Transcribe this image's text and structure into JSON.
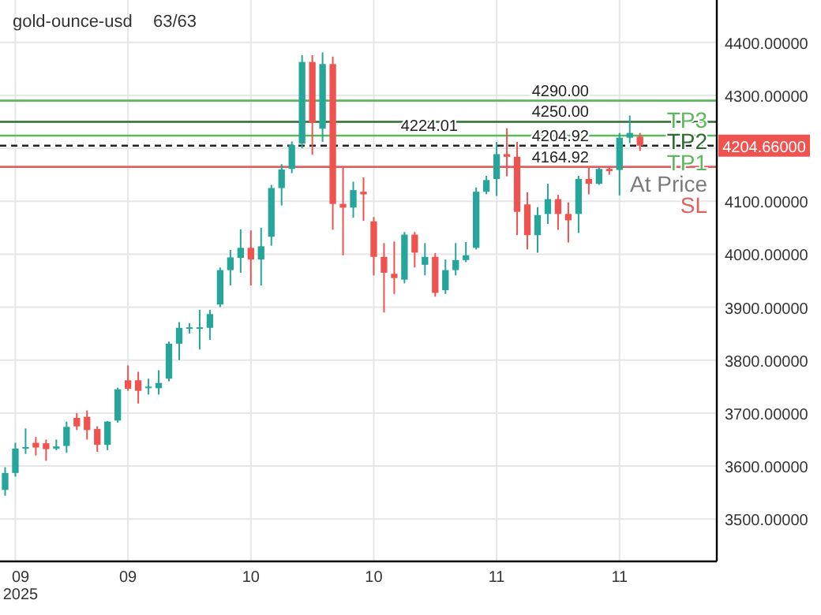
{
  "chart_data": {
    "type": "candlestick",
    "title": "gold-ounce-usd",
    "subtitle": "63/63",
    "categories": [
      null,
      "09\n2025",
      null,
      null,
      null,
      null,
      null,
      null,
      null,
      null,
      null,
      null,
      "09",
      null,
      null,
      null,
      null,
      null,
      null,
      null,
      null,
      null,
      null,
      null,
      "10",
      null,
      null,
      null,
      null,
      null,
      null,
      null,
      null,
      null,
      null,
      null,
      "10",
      null,
      null,
      null,
      null,
      null,
      null,
      null,
      null,
      null,
      null,
      null,
      "11",
      null,
      null,
      null,
      null,
      null,
      null,
      null,
      null,
      null,
      null,
      null,
      "11",
      null,
      null
    ],
    "ohlc": [
      [
        3555,
        3598,
        3544,
        3587
      ],
      [
        3587,
        3644,
        3580,
        3633
      ],
      [
        3633,
        3671,
        3623,
        3636
      ],
      [
        3644,
        3655,
        3620,
        3635
      ],
      [
        3643,
        3650,
        3610,
        3632
      ],
      [
        3633,
        3650,
        3630,
        3637
      ],
      [
        3638,
        3684,
        3625,
        3674
      ],
      [
        3691,
        3700,
        3668,
        3675
      ],
      [
        3693,
        3705,
        3650,
        3668
      ],
      [
        3670,
        3675,
        3627,
        3640
      ],
      [
        3640,
        3685,
        3630,
        3684
      ],
      [
        3686,
        3748,
        3682,
        3745
      ],
      [
        3762,
        3790,
        3742,
        3746
      ],
      [
        3762,
        3778,
        3718,
        3742
      ],
      [
        3748,
        3765,
        3735,
        3750
      ],
      [
        3747,
        3781,
        3735,
        3757
      ],
      [
        3765,
        3835,
        3760,
        3831
      ],
      [
        3831,
        3872,
        3800,
        3861
      ],
      [
        3860,
        3870,
        3850,
        3862
      ],
      [
        3860,
        3895,
        3820,
        3862
      ],
      [
        3861,
        3895,
        3838,
        3887
      ],
      [
        3905,
        3975,
        3900,
        3970
      ],
      [
        3970,
        4008,
        3941,
        3994
      ],
      [
        3993,
        4047,
        3965,
        4012
      ],
      [
        4012,
        4045,
        3941,
        3990
      ],
      [
        3990,
        4050,
        3941,
        4015
      ],
      [
        4033,
        4131,
        4016,
        4125
      ],
      [
        4125,
        4170,
        4092,
        4160
      ],
      [
        4161,
        4213,
        4153,
        4206
      ],
      [
        4209,
        4376,
        4200,
        4363
      ],
      [
        4363,
        4376,
        4188,
        4248
      ],
      [
        4237,
        4381,
        4212,
        4359
      ],
      [
        4359,
        4373,
        4046,
        4095
      ],
      [
        4095,
        4163,
        3998,
        4088
      ],
      [
        4088,
        4137,
        4069,
        4121
      ],
      [
        4118,
        4145,
        4063,
        4113
      ],
      [
        4062,
        4070,
        3960,
        3995
      ],
      [
        3995,
        4021,
        3890,
        3965
      ],
      [
        3963,
        4024,
        3925,
        3955
      ],
      [
        3952,
        4042,
        3945,
        4037
      ],
      [
        4037,
        4042,
        3975,
        4003
      ],
      [
        3980,
        4021,
        3960,
        3995
      ],
      [
        3995,
        4002,
        3920,
        3927
      ],
      [
        3932,
        3990,
        3925,
        3970
      ],
      [
        3970,
        4021,
        3960,
        3989
      ],
      [
        3989,
        4023,
        3985,
        3998
      ],
      [
        4012,
        4126,
        4009,
        4118
      ],
      [
        4118,
        4148,
        4113,
        4140
      ],
      [
        4142,
        4212,
        4110,
        4189
      ],
      [
        4189,
        4238,
        4147,
        4184
      ],
      [
        4184,
        4212,
        4036,
        4080
      ],
      [
        4094,
        4117,
        4009,
        4036
      ],
      [
        4036,
        4089,
        4003,
        4074
      ],
      [
        4076,
        4133,
        4057,
        4104
      ],
      [
        4104,
        4112,
        4046,
        4076
      ],
      [
        4076,
        4098,
        4022,
        4064
      ],
      [
        4076,
        4148,
        4040,
        4142
      ],
      [
        4142,
        4164,
        4113,
        4133
      ],
      [
        4133,
        4164,
        4131,
        4161
      ],
      [
        4161,
        4164,
        4150,
        4157
      ],
      [
        4159,
        4229,
        4111,
        4220
      ],
      [
        4220,
        4262,
        4210,
        4229
      ],
      [
        4222,
        4229,
        4195,
        4205
      ]
    ],
    "ylim": [
      3420,
      4480
    ],
    "yticks": [
      {
        "value": 3500,
        "label": "3500.00000"
      },
      {
        "value": 3600,
        "label": "3600.00000"
      },
      {
        "value": 3700,
        "label": "3700.00000"
      },
      {
        "value": 3800,
        "label": "3800.00000"
      },
      {
        "value": 3900,
        "label": "3900.00000"
      },
      {
        "value": 4000,
        "label": "4000.00000"
      },
      {
        "value": 4100,
        "label": "4100.00000"
      },
      {
        "value": 4200,
        "label": null
      },
      {
        "value": 4300,
        "label": "4300.00000"
      },
      {
        "value": 4400,
        "label": "4400.00000"
      }
    ],
    "grid": true,
    "ref_lines": [
      {
        "axis": "y",
        "value": 4290,
        "label": "4290.00",
        "color": "#5cb85c",
        "line_style": "solid"
      },
      {
        "axis": "y",
        "value": 4250,
        "label": "4250.00",
        "color": "#2e6b2e",
        "line_style": "solid"
      },
      {
        "axis": "y",
        "value": 4224.01,
        "label": "4224.01",
        "color": "#5cb85c",
        "line_style": "solid"
      },
      {
        "axis": "y",
        "value": 4204.92,
        "label": "4204.92",
        "color": "#222222",
        "line_style": "dashed"
      },
      {
        "axis": "y",
        "value": 4164.92,
        "label": "4164.92",
        "color": "#e06060",
        "line_style": "solid"
      }
    ],
    "annotations": [
      "TP3",
      "TP2",
      "TP1",
      "At Price",
      "SL",
      "4204.66000"
    ]
  }
}
